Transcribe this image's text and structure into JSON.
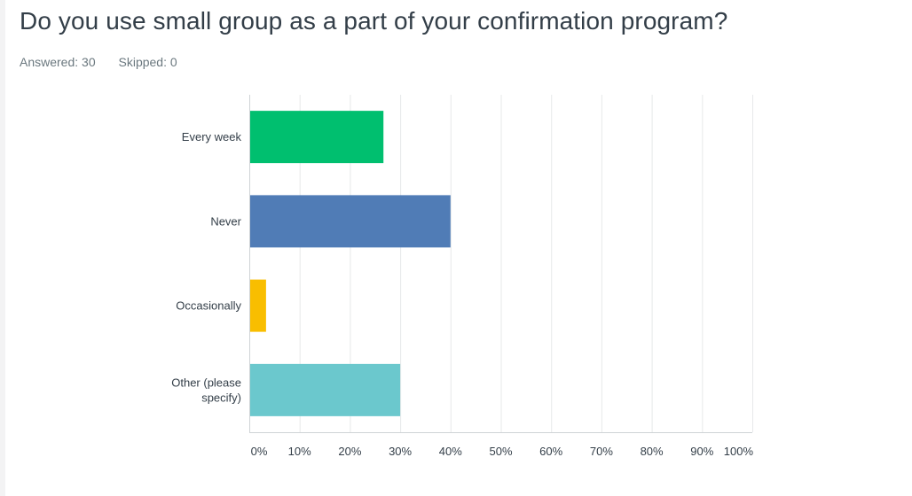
{
  "question": {
    "title": "Do you use small group as a part of your confirmation program?",
    "answered_label": "Answered: 30",
    "skipped_label": "Skipped: 0"
  },
  "chart_data": {
    "type": "bar",
    "orientation": "horizontal",
    "categories": [
      [
        "Every week"
      ],
      [
        "Never"
      ],
      [
        "Occasionally"
      ],
      [
        "Other (please",
        "specify)"
      ]
    ],
    "values": [
      26.67,
      40.0,
      3.33,
      30.0
    ],
    "colors": [
      "#00bf6f",
      "#507cb6",
      "#f9be00",
      "#6bc8cd"
    ],
    "xlim": [
      0,
      100
    ],
    "ticks": [
      "0%",
      "10%",
      "20%",
      "30%",
      "40%",
      "50%",
      "60%",
      "70%",
      "80%",
      "90%",
      "100%"
    ],
    "grid": true,
    "title": "",
    "xlabel": "",
    "ylabel": ""
  }
}
